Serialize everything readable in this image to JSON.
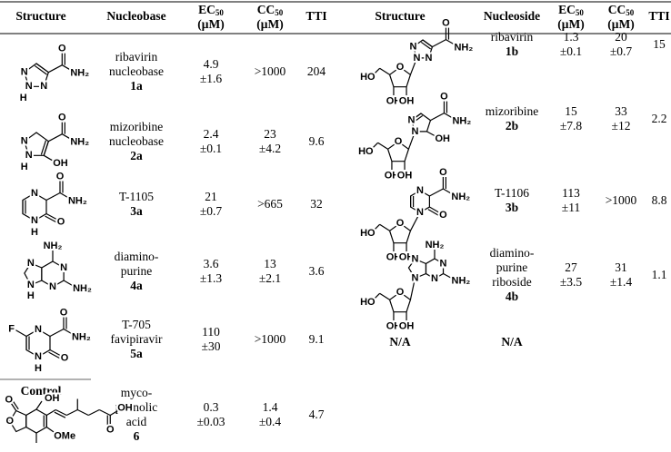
{
  "table": {
    "left_headers": [
      "Structure",
      "Nucleobase",
      {
        "main": "EC",
        "sub": "50",
        "unit": "(μM)"
      },
      {
        "main": "CC",
        "sub": "50",
        "unit": "(μM)"
      },
      "TTI"
    ],
    "right_headers": [
      "Structure",
      "Nucleoside",
      {
        "main": "EC",
        "sub": "50",
        "unit": "(μM)"
      },
      {
        "main": "CC",
        "sub": "50",
        "unit": "(μM)"
      },
      "TTI"
    ],
    "left_rows": [
      {
        "atoms": [
          "N",
          "N",
          "N",
          "H",
          "O",
          "NH₂"
        ],
        "name": [
          "ribavirin",
          "nucleobase"
        ],
        "id": "1a",
        "ec50": [
          "4.9",
          "±1.6"
        ],
        "cc50": [
          ">1000"
        ],
        "tti": "204"
      },
      {
        "atoms": [
          "N",
          "N",
          "H",
          "OH",
          "O",
          "NH₂"
        ],
        "name": [
          "mizoribine",
          "nucleobase"
        ],
        "id": "2a",
        "ec50": [
          "2.4",
          "±0.1"
        ],
        "cc50": [
          "23",
          "±4.2"
        ],
        "tti": "9.6"
      },
      {
        "atoms": [
          "N",
          "N",
          "H",
          "O",
          "NH₂",
          "O"
        ],
        "name": [
          "T-1105"
        ],
        "id": "3a",
        "ec50": [
          "21",
          "±0.7"
        ],
        "cc50": [
          ">665"
        ],
        "tti": "32"
      },
      {
        "atoms": [
          "NH₂",
          "N",
          "N",
          "N",
          "N",
          "H",
          "NH₂"
        ],
        "name": [
          "diamino-",
          "purine"
        ],
        "id": "4a",
        "ec50": [
          "3.6",
          "±1.3"
        ],
        "cc50": [
          "13",
          "±2.1"
        ],
        "tti": "3.6"
      },
      {
        "atoms": [
          "F",
          "N",
          "N",
          "H",
          "O",
          "NH₂",
          "O"
        ],
        "name": [
          "T-705",
          "favipiravir"
        ],
        "id": "5a",
        "ec50": [
          "110",
          "±30"
        ],
        "cc50": [
          ">1000"
        ],
        "tti": "9.1"
      },
      {
        "label": "Control",
        "atoms": [
          "O",
          "O",
          "OH",
          "OMe",
          "O",
          "OH"
        ],
        "name": [
          "myco-",
          "phenolic",
          "acid"
        ],
        "id": "6",
        "ec50": [
          "0.3",
          "±0.03"
        ],
        "cc50": [
          "1.4",
          "±0.4"
        ],
        "tti": "4.7"
      }
    ],
    "right_rows": [
      {
        "atoms": [
          "N",
          "N",
          "N",
          "O",
          "NH₂",
          "O",
          "HO",
          "OH",
          "OH"
        ],
        "name": [
          "ribavirin"
        ],
        "id": "1b",
        "ec50": [
          "1.3",
          "±0.1"
        ],
        "cc50": [
          "20",
          "±0.7"
        ],
        "tti": "15"
      },
      {
        "atoms": [
          "N",
          "N",
          "OH",
          "O",
          "NH₂",
          "O",
          "HO",
          "OH",
          "OH"
        ],
        "name": [
          "mizoribine"
        ],
        "id": "2b",
        "ec50": [
          "15",
          "±7.8"
        ],
        "cc50": [
          "33",
          "±12"
        ],
        "tti": "2.2"
      },
      {
        "atoms": [
          "N",
          "N",
          "O",
          "O",
          "NH₂",
          "O",
          "HO",
          "OH",
          "OH"
        ],
        "name": [
          "T-1106"
        ],
        "id": "3b",
        "ec50": [
          "113",
          "±11"
        ],
        "cc50": [
          ">1000"
        ],
        "tti": "8.8"
      },
      {
        "atoms": [
          "NH₂",
          "N",
          "N",
          "N",
          "N",
          "NH₂",
          "O",
          "HO",
          "OH",
          "OH"
        ],
        "name": [
          "diamino-",
          "purine",
          "riboside"
        ],
        "id": "4b",
        "ec50": [
          "27",
          "±3.5"
        ],
        "cc50": [
          "31",
          "±1.4"
        ],
        "tti": "1.1"
      },
      {
        "structure": "N/A",
        "name": "N/A"
      }
    ]
  }
}
